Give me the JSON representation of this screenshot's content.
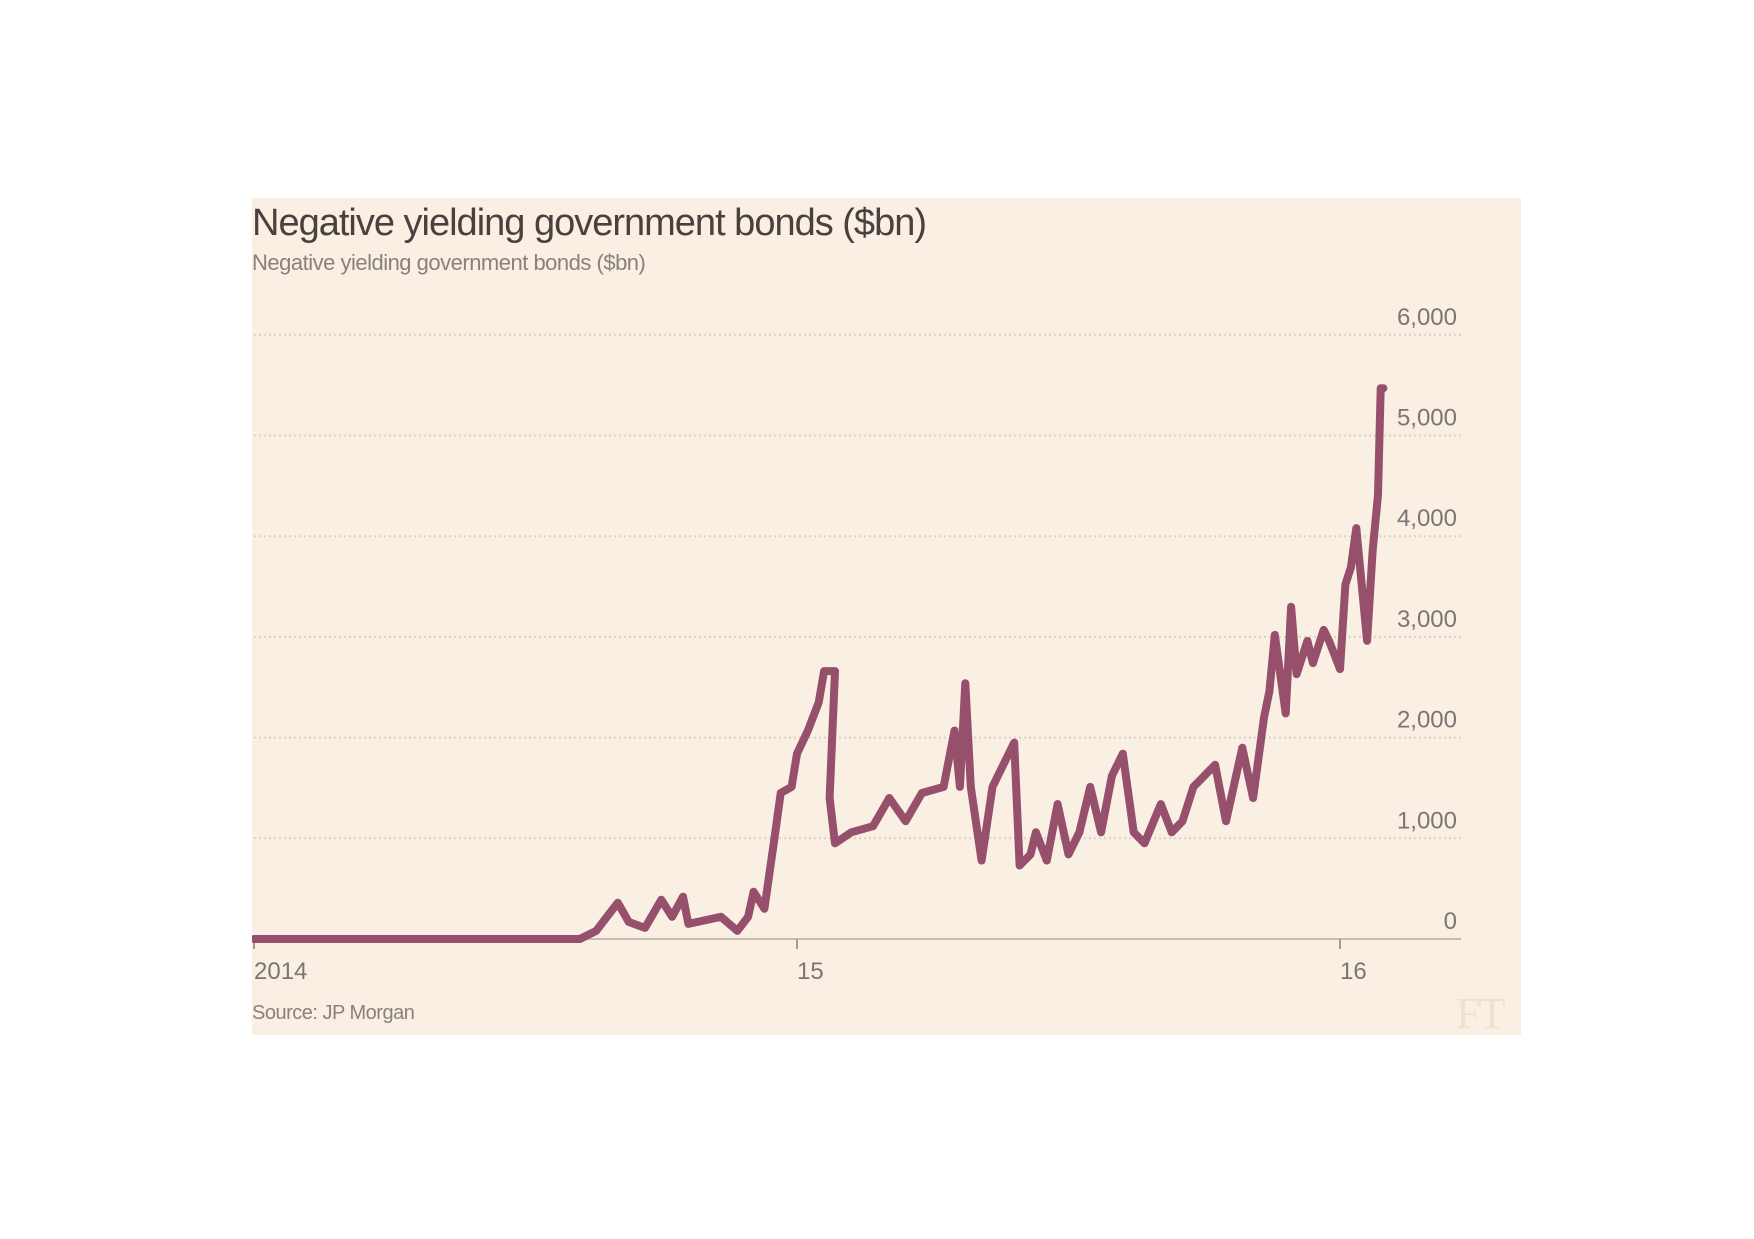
{
  "chart_data": {
    "type": "line",
    "title": "Negative yielding government bonds ($bn)",
    "subtitle": "Negative yielding government bonds ($bn)",
    "source": "Source: JP Morgan",
    "logo": "FT",
    "xlabel": "",
    "ylabel": "",
    "xlim": [
      2014.0,
      2016.24
    ],
    "ylim": [
      0,
      6000
    ],
    "x_ticks": [
      {
        "value": 2014,
        "label": "2014"
      },
      {
        "value": 2015,
        "label": "15"
      },
      {
        "value": 2016,
        "label": "16"
      }
    ],
    "y_ticks": [
      {
        "value": 0,
        "label": "0"
      },
      {
        "value": 1000,
        "label": "1,000"
      },
      {
        "value": 2000,
        "label": "2,000"
      },
      {
        "value": 3000,
        "label": "3,000"
      },
      {
        "value": 4000,
        "label": "4,000"
      },
      {
        "value": 5000,
        "label": "5,000"
      },
      {
        "value": 6000,
        "label": "6,000"
      }
    ],
    "grid": "horizontal dotted",
    "y_axis_side": "right",
    "colors": {
      "line": "#96506c",
      "background": "#f9efe2",
      "grid": "#dcd0c4"
    },
    "series": [
      {
        "x": [
          2014.0,
          2014.6,
          2014.63,
          2014.67,
          2014.69,
          2014.72,
          2014.75,
          2014.77,
          2014.79,
          2014.8,
          2014.86,
          2014.89,
          2014.91,
          2014.92,
          2014.94,
          2014.96,
          2014.97,
          2014.99,
          2015.0,
          2015.02,
          2015.04,
          2015.05,
          2015.07,
          2015.06,
          2015.07,
          2015.1,
          2015.14,
          2015.17,
          2015.2,
          2015.23,
          2015.27,
          2015.29,
          2015.3,
          2015.31,
          2015.32,
          2015.34,
          2015.36,
          2015.38,
          2015.4,
          2015.41,
          2015.43,
          2015.44,
          2015.46,
          2015.48,
          2015.5,
          2015.52,
          2015.54,
          2015.56,
          2015.58,
          2015.6,
          2015.62,
          2015.64,
          2015.67,
          2015.69,
          2015.71,
          2015.73,
          2015.77,
          2015.79,
          2015.82,
          2015.84,
          2015.86,
          2015.87,
          2015.88,
          2015.9,
          2015.91,
          2015.92,
          2015.94,
          2015.95,
          2015.97,
          2015.98,
          2016.0,
          2016.01,
          2016.02,
          2016.03,
          2016.04,
          2016.05,
          2016.06,
          2016.07,
          2016.075,
          2016.08
        ],
        "y": [
          0,
          0,
          80,
          360,
          170,
          110,
          390,
          220,
          420,
          150,
          220,
          80,
          220,
          470,
          300,
          1060,
          1450,
          1510,
          1840,
          2070,
          2350,
          2660,
          2660,
          1400,
          950,
          1060,
          1120,
          1400,
          1170,
          1450,
          1510,
          2070,
          1510,
          2540,
          1510,
          780,
          1510,
          1730,
          1950,
          730,
          840,
          1060,
          780,
          1340,
          840,
          1060,
          1510,
          1060,
          1620,
          1840,
          1060,
          950,
          1340,
          1060,
          1170,
          1510,
          1730,
          1170,
          1900,
          1400,
          2200,
          2460,
          3020,
          2240,
          3300,
          2630,
          2960,
          2740,
          3070,
          2960,
          2680,
          3520,
          3690,
          4080,
          3520,
          2960,
          3850,
          4410,
          5470,
          5470
        ]
      }
    ]
  }
}
